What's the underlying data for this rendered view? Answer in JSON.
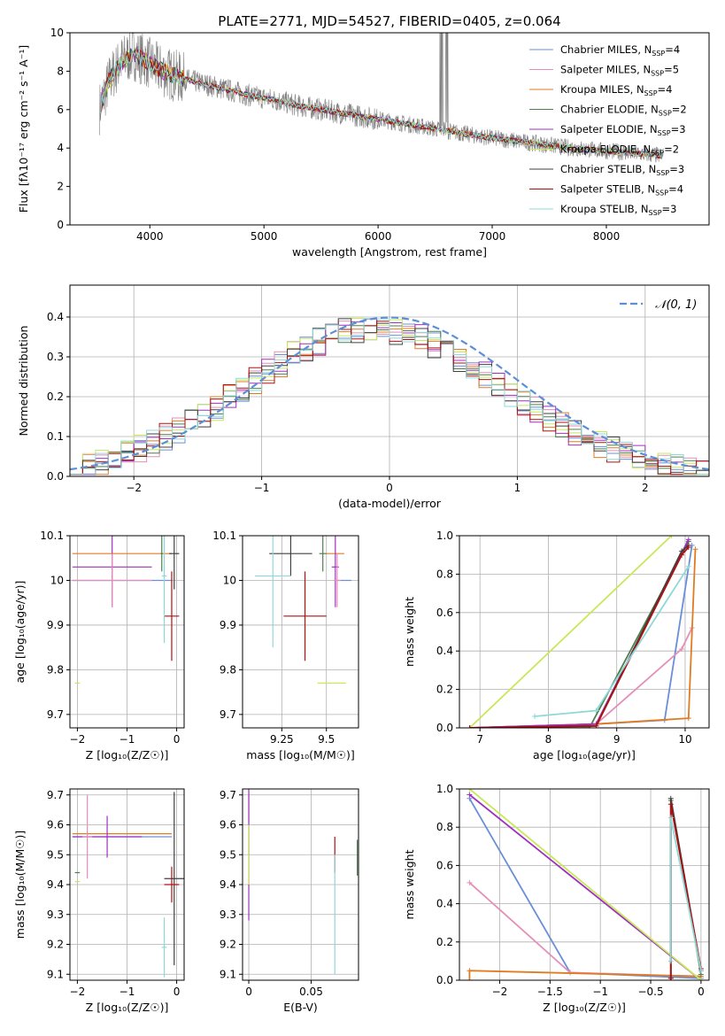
{
  "figure_title": "PLATE=2771, MJD=54527, FIBERID=0405, z=0.064",
  "series_meta": [
    {
      "key": "chab_miles",
      "name_main": "Chabrier MILES, N",
      "name_sub": "SSP",
      "name_tail": "=4",
      "color": "#6a8fd8"
    },
    {
      "key": "salp_miles",
      "name_main": "Salpeter MILES, N",
      "name_sub": "SSP",
      "name_tail": "=5",
      "color": "#e48fb8"
    },
    {
      "key": "krou_miles",
      "name_main": "Kroupa MILES, N",
      "name_sub": "SSP",
      "name_tail": "=4",
      "color": "#e07b22"
    },
    {
      "key": "chab_elodie",
      "name_main": "Chabrier ELODIE, N",
      "name_sub": "SSP",
      "name_tail": "=2",
      "color": "#4f7f4f"
    },
    {
      "key": "salp_elodie",
      "name_main": "Salpeter ELODIE, N",
      "name_sub": "SSP",
      "name_tail": "=3",
      "color": "#a030c0"
    },
    {
      "key": "krou_elodie",
      "name_main": "Kroupa ELODIE, N",
      "name_sub": "SSP",
      "name_tail": "=2",
      "color": "#c8e85a"
    },
    {
      "key": "chab_stelib",
      "name_main": "Chabrier STELIB, N",
      "name_sub": "SSP",
      "name_tail": "=3",
      "color": "#404040"
    },
    {
      "key": "salp_stelib",
      "name_main": "Salpeter STELIB, N",
      "name_sub": "SSP",
      "name_tail": "=4",
      "color": "#b01010"
    },
    {
      "key": "krou_stelib",
      "name_main": "Kroupa STELIB, N",
      "name_sub": "SSP",
      "name_tail": "=3",
      "color": "#8fd8d8"
    }
  ],
  "chart_data": [
    {
      "id": "spectrum",
      "type": "line",
      "xlabel": "wavelength [Angstrom, rest frame]",
      "ylabel": "Flux [fλ10⁻¹⁷ erg cm⁻² s⁻¹ A⁻¹]",
      "xlim": [
        3300,
        8900
      ],
      "ylim": [
        0,
        10
      ],
      "xticks": [
        4000,
        5000,
        6000,
        7000,
        8000
      ],
      "yticks": [
        0,
        2,
        4,
        6,
        8,
        10
      ],
      "legend": "right",
      "data_color": "#808080",
      "continuum": {
        "x": [
          3550,
          3650,
          3750,
          3850,
          3950,
          4050,
          4150,
          4300,
          4500,
          4700,
          4900,
          5100,
          5300,
          5500,
          5700,
          5900,
          6100,
          6300,
          6500,
          6700,
          6900,
          7100,
          7300,
          7500,
          7700,
          7900,
          8100,
          8300,
          8500
        ],
        "y": [
          5.9,
          7.6,
          8.5,
          8.9,
          8.6,
          8.2,
          7.9,
          7.6,
          7.3,
          7.0,
          6.7,
          6.5,
          6.2,
          6.0,
          5.8,
          5.6,
          5.4,
          5.2,
          5.0,
          4.8,
          4.6,
          4.45,
          4.3,
          4.15,
          4.0,
          3.9,
          3.8,
          3.7,
          3.6
        ]
      }
    },
    {
      "id": "residuals",
      "type": "step",
      "xlabel": "(data-model)/error",
      "ylabel": "Normed distribution",
      "xlim": [
        -2.5,
        2.5
      ],
      "ylim": [
        0,
        0.48
      ],
      "xticks": [
        -2,
        -1,
        0,
        1,
        2
      ],
      "yticks": [
        0.0,
        0.1,
        0.2,
        0.3,
        0.4
      ],
      "legend_label": "𝒩(0, 1)",
      "legend": "top-right",
      "gauss_color": "#5b8fd8",
      "bin_width": 0.1
    },
    {
      "id": "age_vs_Z",
      "type": "errorbar",
      "xlabel": "Z [log₁₀(Z/Z☉)]",
      "ylabel": "age  [log₁₀(age/yr)]",
      "xlim": [
        -2.15,
        0.15
      ],
      "ylim": [
        9.67,
        10.1
      ],
      "xticks": [
        -2,
        -1,
        0
      ],
      "yticks": [
        9.7,
        9.8,
        9.9,
        10.0,
        10.1
      ],
      "points": [
        {
          "s": 2,
          "x": -1.1,
          "xe": 1.0,
          "y": 10.06,
          "ye": 0.0
        },
        {
          "s": 0,
          "x": -1.1,
          "xe": 1.0,
          "y": 10.0,
          "ye": 0.0
        },
        {
          "s": 4,
          "x": -1.3,
          "xe": 0.8,
          "y": 10.03,
          "ye": 0.09
        },
        {
          "s": 1,
          "x": -1.3,
          "xe": 0.8,
          "y": 10.0,
          "ye": 0.06
        },
        {
          "s": 5,
          "x": -2.0,
          "xe": 0.05,
          "y": 9.77,
          "ye": 0.0
        },
        {
          "s": 6,
          "x": -0.05,
          "xe": 0.1,
          "y": 10.06,
          "ye": 0.08
        },
        {
          "s": 7,
          "x": -0.1,
          "xe": 0.15,
          "y": 9.92,
          "ye": 0.1
        },
        {
          "s": 8,
          "x": -0.25,
          "xe": 0.05,
          "y": 10.01,
          "ye": 0.15
        },
        {
          "s": 3,
          "x": -0.3,
          "xe": 0.02,
          "y": 10.06,
          "ye": 0.04
        }
      ]
    },
    {
      "id": "age_vs_mass",
      "type": "errorbar",
      "xlabel": "mass [log₁₀(M/M☉)]",
      "ylabel": "",
      "xlim": [
        9.03,
        9.68
      ],
      "ylim": [
        9.67,
        10.1
      ],
      "xticks": [
        9.25,
        9.5
      ],
      "yticks": [
        9.7,
        9.8,
        9.9,
        10.0,
        10.1
      ],
      "points": [
        {
          "s": 2,
          "x": 9.55,
          "xe": 0.05,
          "y": 10.06,
          "ye": 0.0
        },
        {
          "s": 0,
          "x": 9.6,
          "xe": 0.04,
          "y": 10.0,
          "ye": 0.0
        },
        {
          "s": 6,
          "x": 9.3,
          "xe": 0.12,
          "y": 10.06,
          "ye": 0.05
        },
        {
          "s": 4,
          "x": 9.55,
          "xe": 0.02,
          "y": 10.03,
          "ye": 0.09
        },
        {
          "s": 1,
          "x": 9.56,
          "xe": 0.02,
          "y": 10.0,
          "ye": 0.06
        },
        {
          "s": 8,
          "x": 9.2,
          "xe": 0.1,
          "y": 10.01,
          "ye": 0.16
        },
        {
          "s": 7,
          "x": 9.38,
          "xe": 0.12,
          "y": 9.92,
          "ye": 0.1
        },
        {
          "s": 5,
          "x": 9.53,
          "xe": 0.08,
          "y": 9.77,
          "ye": 0.0
        },
        {
          "s": 3,
          "x": 9.48,
          "xe": 0.02,
          "y": 10.06,
          "ye": 0.04
        }
      ]
    },
    {
      "id": "mass_weight_vs_age",
      "type": "line",
      "xlabel": "age  [log₁₀(age/yr)]",
      "ylabel": "mass weight",
      "xlim": [
        6.7,
        10.35
      ],
      "ylim": [
        0,
        1
      ],
      "xticks": [
        7,
        8,
        9,
        10
      ],
      "yticks": [
        0.0,
        0.2,
        0.4,
        0.6,
        0.8,
        1.0
      ],
      "grid": true,
      "lines": [
        {
          "s": 0,
          "x": [
            6.85,
            8.7,
            9.7,
            10.1
          ],
          "y": [
            0.0,
            0.02,
            0.04,
            0.95
          ]
        },
        {
          "s": 1,
          "x": [
            6.85,
            8.7,
            9.95,
            10.1
          ],
          "y": [
            0.0,
            0.02,
            0.41,
            0.52
          ]
        },
        {
          "s": 2,
          "x": [
            6.85,
            8.7,
            10.05,
            10.15
          ],
          "y": [
            0.0,
            0.02,
            0.05,
            0.93
          ]
        },
        {
          "s": 3,
          "x": [
            7.9,
            8.6,
            10.05
          ],
          "y": [
            0.0,
            0.0,
            0.97
          ]
        },
        {
          "s": 4,
          "x": [
            6.85,
            8.7,
            10.05
          ],
          "y": [
            0.0,
            0.02,
            0.98
          ]
        },
        {
          "s": 5,
          "x": [
            6.85,
            9.8
          ],
          "y": [
            0.0,
            1.0
          ]
        },
        {
          "s": 6,
          "x": [
            6.85,
            8.7,
            9.95,
            10.05
          ],
          "y": [
            0.0,
            0.01,
            0.92,
            0.95
          ]
        },
        {
          "s": 7,
          "x": [
            6.85,
            8.7,
            9.95,
            10.05
          ],
          "y": [
            0.0,
            0.01,
            0.9,
            0.94
          ]
        },
        {
          "s": 8,
          "x": [
            7.8,
            8.7,
            10.05
          ],
          "y": [
            0.06,
            0.09,
            0.84
          ]
        }
      ]
    },
    {
      "id": "mass_vs_Z",
      "type": "errorbar",
      "xlabel": "Z [log₁₀(Z/Z☉)]",
      "ylabel": "mass [log₁₀(M/M☉)]",
      "xlim": [
        -2.15,
        0.15
      ],
      "ylim": [
        9.08,
        9.72
      ],
      "xticks": [
        -2,
        -1,
        0
      ],
      "yticks": [
        9.1,
        9.2,
        9.3,
        9.4,
        9.5,
        9.6,
        9.7
      ],
      "points": [
        {
          "s": 2,
          "x": -1.1,
          "xe": 1.0,
          "y": 9.57,
          "ye": 0.0
        },
        {
          "s": 0,
          "x": -1.1,
          "xe": 1.0,
          "y": 9.56,
          "ye": 0.0
        },
        {
          "s": 4,
          "x": -1.4,
          "xe": 0.7,
          "y": 9.56,
          "ye": 0.07
        },
        {
          "s": 1,
          "x": -1.8,
          "xe": 0.1,
          "y": 9.56,
          "ye": 0.14
        },
        {
          "s": 3,
          "x": -2.0,
          "xe": 0.05,
          "y": 9.44,
          "ye": 0.0
        },
        {
          "s": 5,
          "x": -2.0,
          "xe": 0.05,
          "y": 9.41,
          "ye": 0.0
        },
        {
          "s": 6,
          "x": -0.05,
          "xe": 0.2,
          "y": 9.42,
          "ye": 0.29
        },
        {
          "s": 7,
          "x": -0.1,
          "xe": 0.15,
          "y": 9.4,
          "ye": 0.06
        },
        {
          "s": 8,
          "x": -0.25,
          "xe": 0.05,
          "y": 9.19,
          "ye": 0.1
        }
      ]
    },
    {
      "id": "mass_vs_EBV",
      "type": "errorbar",
      "xlabel": "E(B-V)",
      "ylabel": "",
      "xlim": [
        -0.005,
        0.088
      ],
      "ylim": [
        9.08,
        9.72
      ],
      "xticks": [
        0.0,
        0.05
      ],
      "yticks": [
        9.1,
        9.2,
        9.3,
        9.4,
        9.5,
        9.6,
        9.7
      ],
      "points": [
        {
          "s": 1,
          "x": 0.0,
          "xe": 0.0,
          "y": 9.6,
          "ye": 0.1
        },
        {
          "s": 4,
          "x": 0.0,
          "xe": 0.0,
          "y": 9.55,
          "ye": 0.27
        },
        {
          "s": 5,
          "x": 0.0,
          "xe": 0.0,
          "y": 9.5,
          "ye": 0.1
        },
        {
          "s": 7,
          "x": 0.069,
          "xe": 0.0,
          "y": 9.5,
          "ye": 0.06
        },
        {
          "s": 8,
          "x": 0.069,
          "xe": 0.0,
          "y": 9.3,
          "ye": 0.2
        },
        {
          "s": 3,
          "x": 0.087,
          "xe": 0.0,
          "y": 9.49,
          "ye": 0.06
        }
      ]
    },
    {
      "id": "mass_weight_vs_Z",
      "type": "line",
      "xlabel": "Z [log₁₀(Z/Z☉)]",
      "ylabel": "mass weight",
      "xlim": [
        -2.4,
        0.08
      ],
      "ylim": [
        0,
        1
      ],
      "xticks": [
        -2.0,
        -1.5,
        -1.0,
        -0.5,
        0.0
      ],
      "yticks": [
        0.0,
        0.2,
        0.4,
        0.6,
        0.8,
        1.0
      ],
      "grid": true,
      "lines": [
        {
          "s": 0,
          "x": [
            -2.3,
            -1.3,
            0.0
          ],
          "y": [
            0.95,
            0.04,
            0.01
          ]
        },
        {
          "s": 1,
          "x": [
            -2.3,
            -1.3,
            0.0
          ],
          "y": [
            0.51,
            0.04,
            0.02
          ]
        },
        {
          "s": 2,
          "x": [
            -2.3,
            -2.3,
            0.0
          ],
          "y": [
            0.0,
            0.05,
            0.02
          ]
        },
        {
          "s": 3,
          "x": [
            -0.3,
            -0.3,
            0.0
          ],
          "y": [
            0.0,
            0.94,
            0.03
          ]
        },
        {
          "s": 4,
          "x": [
            -2.3,
            0.0
          ],
          "y": [
            0.97,
            0.0
          ]
        },
        {
          "s": 5,
          "x": [
            -2.3,
            0.0
          ],
          "y": [
            1.0,
            0.0
          ]
        },
        {
          "s": 6,
          "x": [
            -0.3,
            -0.3,
            0.0
          ],
          "y": [
            0.01,
            0.95,
            0.05
          ]
        },
        {
          "s": 7,
          "x": [
            -0.3,
            -0.3,
            0.0
          ],
          "y": [
            0.01,
            0.92,
            0.06
          ]
        },
        {
          "s": 8,
          "x": [
            -0.3,
            -0.3,
            0.0
          ],
          "y": [
            0.1,
            0.85,
            0.05
          ]
        }
      ]
    }
  ]
}
